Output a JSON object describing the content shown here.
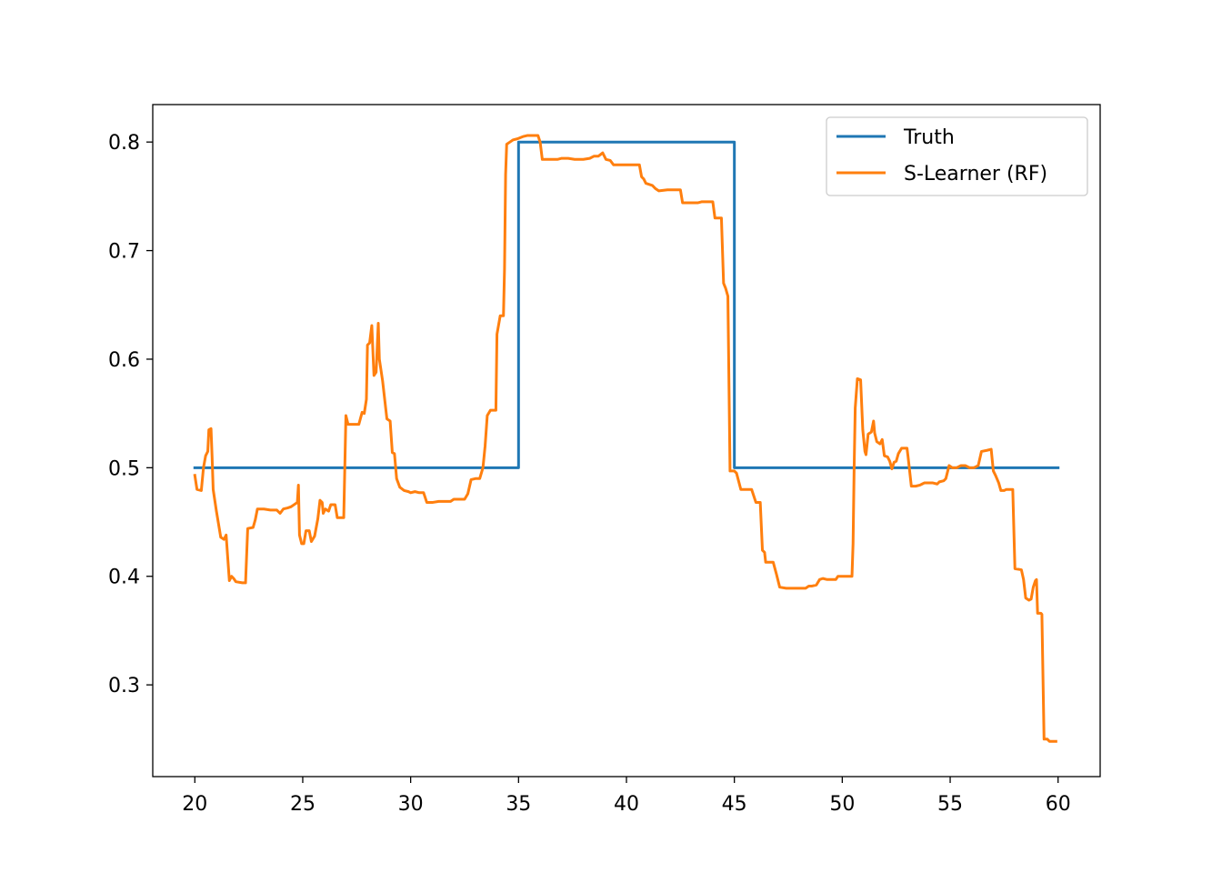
{
  "chart_data": {
    "type": "line",
    "title": "",
    "xlabel": "",
    "ylabel": "",
    "xlim": [
      18.05,
      61.95
    ],
    "ylim": [
      0.2155,
      0.8345
    ],
    "xticks": [
      20,
      25,
      30,
      35,
      40,
      45,
      50,
      55,
      60
    ],
    "xtick_labels": [
      "20",
      "25",
      "30",
      "35",
      "40",
      "45",
      "50",
      "55",
      "60"
    ],
    "yticks": [
      0.3,
      0.4,
      0.5,
      0.6,
      0.7,
      0.8
    ],
    "ytick_labels": [
      "0.3",
      "0.4",
      "0.5",
      "0.6",
      "0.7",
      "0.8"
    ],
    "grid": false,
    "legend_position": "top-right",
    "series": [
      {
        "name": "Truth",
        "color": "#1f77b4",
        "points": [
          [
            20,
            0.5
          ],
          [
            35,
            0.5
          ],
          [
            35,
            0.8
          ],
          [
            45,
            0.8
          ],
          [
            45,
            0.5
          ],
          [
            60,
            0.5
          ]
        ]
      },
      {
        "name": "S-Learner (RF)",
        "color": "#ff7f0e",
        "points": [
          [
            20.0,
            0.493
          ],
          [
            20.1,
            0.48
          ],
          [
            20.3,
            0.479
          ],
          [
            20.4,
            0.5
          ],
          [
            20.5,
            0.511
          ],
          [
            20.6,
            0.515
          ],
          [
            20.65,
            0.535
          ],
          [
            20.75,
            0.536
          ],
          [
            20.8,
            0.51
          ],
          [
            20.85,
            0.48
          ],
          [
            21.0,
            0.46
          ],
          [
            21.2,
            0.436
          ],
          [
            21.35,
            0.434
          ],
          [
            21.45,
            0.438
          ],
          [
            21.6,
            0.396
          ],
          [
            21.7,
            0.4
          ],
          [
            21.8,
            0.398
          ],
          [
            21.9,
            0.395
          ],
          [
            22.2,
            0.394
          ],
          [
            22.35,
            0.394
          ],
          [
            22.45,
            0.444
          ],
          [
            22.7,
            0.445
          ],
          [
            22.8,
            0.452
          ],
          [
            22.9,
            0.462
          ],
          [
            23.2,
            0.462
          ],
          [
            23.5,
            0.461
          ],
          [
            23.8,
            0.461
          ],
          [
            23.95,
            0.458
          ],
          [
            24.1,
            0.462
          ],
          [
            24.3,
            0.463
          ],
          [
            24.45,
            0.464
          ],
          [
            24.6,
            0.466
          ],
          [
            24.75,
            0.468
          ],
          [
            24.8,
            0.484
          ],
          [
            24.85,
            0.438
          ],
          [
            24.95,
            0.43
          ],
          [
            25.05,
            0.43
          ],
          [
            25.15,
            0.442
          ],
          [
            25.3,
            0.442
          ],
          [
            25.4,
            0.432
          ],
          [
            25.55,
            0.437
          ],
          [
            25.7,
            0.453
          ],
          [
            25.8,
            0.47
          ],
          [
            25.9,
            0.468
          ],
          [
            25.95,
            0.458
          ],
          [
            26.05,
            0.462
          ],
          [
            26.2,
            0.46
          ],
          [
            26.3,
            0.466
          ],
          [
            26.5,
            0.466
          ],
          [
            26.6,
            0.454
          ],
          [
            26.9,
            0.454
          ],
          [
            27.0,
            0.548
          ],
          [
            27.1,
            0.54
          ],
          [
            27.6,
            0.54
          ],
          [
            27.75,
            0.551
          ],
          [
            27.85,
            0.55
          ],
          [
            27.95,
            0.563
          ],
          [
            28.0,
            0.613
          ],
          [
            28.1,
            0.615
          ],
          [
            28.2,
            0.631
          ],
          [
            28.3,
            0.585
          ],
          [
            28.4,
            0.588
          ],
          [
            28.5,
            0.633
          ],
          [
            28.55,
            0.6
          ],
          [
            28.7,
            0.58
          ],
          [
            28.9,
            0.545
          ],
          [
            29.05,
            0.543
          ],
          [
            29.15,
            0.514
          ],
          [
            29.25,
            0.513
          ],
          [
            29.35,
            0.49
          ],
          [
            29.5,
            0.482
          ],
          [
            29.7,
            0.479
          ],
          [
            29.9,
            0.478
          ],
          [
            30.0,
            0.477
          ],
          [
            30.2,
            0.478
          ],
          [
            30.4,
            0.477
          ],
          [
            30.6,
            0.477
          ],
          [
            30.75,
            0.468
          ],
          [
            31.0,
            0.468
          ],
          [
            31.3,
            0.469
          ],
          [
            31.6,
            0.469
          ],
          [
            31.85,
            0.469
          ],
          [
            32.0,
            0.471
          ],
          [
            32.3,
            0.471
          ],
          [
            32.5,
            0.471
          ],
          [
            32.65,
            0.476
          ],
          [
            32.8,
            0.489
          ],
          [
            33.0,
            0.49
          ],
          [
            33.2,
            0.49
          ],
          [
            33.35,
            0.5
          ],
          [
            33.45,
            0.52
          ],
          [
            33.55,
            0.548
          ],
          [
            33.7,
            0.553
          ],
          [
            33.8,
            0.553
          ],
          [
            33.95,
            0.553
          ],
          [
            34.0,
            0.623
          ],
          [
            34.15,
            0.64
          ],
          [
            34.3,
            0.64
          ],
          [
            34.35,
            0.683
          ],
          [
            34.4,
            0.77
          ],
          [
            34.45,
            0.798
          ],
          [
            34.6,
            0.8
          ],
          [
            34.75,
            0.802
          ],
          [
            34.95,
            0.803
          ],
          [
            35.2,
            0.805
          ],
          [
            35.4,
            0.806
          ],
          [
            35.7,
            0.806
          ],
          [
            35.9,
            0.806
          ],
          [
            36.0,
            0.8
          ],
          [
            36.1,
            0.784
          ],
          [
            36.4,
            0.784
          ],
          [
            36.8,
            0.784
          ],
          [
            37.0,
            0.785
          ],
          [
            37.3,
            0.785
          ],
          [
            37.6,
            0.784
          ],
          [
            38.0,
            0.784
          ],
          [
            38.3,
            0.785
          ],
          [
            38.5,
            0.787
          ],
          [
            38.7,
            0.787
          ],
          [
            38.9,
            0.79
          ],
          [
            39.05,
            0.784
          ],
          [
            39.25,
            0.783
          ],
          [
            39.4,
            0.779
          ],
          [
            39.6,
            0.779
          ],
          [
            40.0,
            0.779
          ],
          [
            40.3,
            0.779
          ],
          [
            40.6,
            0.779
          ],
          [
            40.7,
            0.768
          ],
          [
            40.8,
            0.766
          ],
          [
            40.9,
            0.762
          ],
          [
            41.2,
            0.76
          ],
          [
            41.35,
            0.757
          ],
          [
            41.5,
            0.755
          ],
          [
            41.9,
            0.756
          ],
          [
            42.3,
            0.756
          ],
          [
            42.5,
            0.756
          ],
          [
            42.6,
            0.744
          ],
          [
            43.0,
            0.744
          ],
          [
            43.3,
            0.744
          ],
          [
            43.5,
            0.745
          ],
          [
            44.0,
            0.745
          ],
          [
            44.1,
            0.73
          ],
          [
            44.4,
            0.73
          ],
          [
            44.5,
            0.67
          ],
          [
            44.6,
            0.665
          ],
          [
            44.7,
            0.658
          ],
          [
            44.8,
            0.497
          ],
          [
            45.0,
            0.497
          ],
          [
            45.1,
            0.495
          ],
          [
            45.3,
            0.48
          ],
          [
            45.5,
            0.48
          ],
          [
            45.8,
            0.48
          ],
          [
            46.0,
            0.468
          ],
          [
            46.2,
            0.468
          ],
          [
            46.3,
            0.424
          ],
          [
            46.4,
            0.422
          ],
          [
            46.45,
            0.413
          ],
          [
            46.6,
            0.413
          ],
          [
            46.8,
            0.413
          ],
          [
            46.95,
            0.402
          ],
          [
            47.1,
            0.39
          ],
          [
            47.4,
            0.389
          ],
          [
            47.8,
            0.389
          ],
          [
            48.1,
            0.389
          ],
          [
            48.3,
            0.389
          ],
          [
            48.45,
            0.391
          ],
          [
            48.6,
            0.391
          ],
          [
            48.8,
            0.392
          ],
          [
            48.95,
            0.397
          ],
          [
            49.1,
            0.398
          ],
          [
            49.3,
            0.397
          ],
          [
            49.5,
            0.397
          ],
          [
            49.7,
            0.397
          ],
          [
            49.8,
            0.4
          ],
          [
            50.1,
            0.4
          ],
          [
            50.3,
            0.4
          ],
          [
            50.45,
            0.4
          ],
          [
            50.5,
            0.43
          ],
          [
            50.55,
            0.5
          ],
          [
            50.6,
            0.555
          ],
          [
            50.7,
            0.582
          ],
          [
            50.85,
            0.581
          ],
          [
            50.95,
            0.535
          ],
          [
            51.05,
            0.515
          ],
          [
            51.1,
            0.512
          ],
          [
            51.2,
            0.531
          ],
          [
            51.35,
            0.533
          ],
          [
            51.45,
            0.543
          ],
          [
            51.5,
            0.532
          ],
          [
            51.6,
            0.524
          ],
          [
            51.75,
            0.522
          ],
          [
            51.85,
            0.526
          ],
          [
            51.95,
            0.511
          ],
          [
            52.1,
            0.51
          ],
          [
            52.2,
            0.506
          ],
          [
            52.3,
            0.499
          ],
          [
            52.4,
            0.505
          ],
          [
            52.5,
            0.506
          ],
          [
            52.6,
            0.513
          ],
          [
            52.75,
            0.518
          ],
          [
            53.0,
            0.518
          ],
          [
            53.05,
            0.51
          ],
          [
            53.2,
            0.483
          ],
          [
            53.4,
            0.483
          ],
          [
            53.6,
            0.484
          ],
          [
            53.7,
            0.485
          ],
          [
            53.8,
            0.486
          ],
          [
            54.0,
            0.486
          ],
          [
            54.2,
            0.486
          ],
          [
            54.4,
            0.485
          ],
          [
            54.5,
            0.487
          ],
          [
            54.7,
            0.488
          ],
          [
            54.8,
            0.49
          ],
          [
            54.95,
            0.502
          ],
          [
            55.1,
            0.5
          ],
          [
            55.3,
            0.5
          ],
          [
            55.5,
            0.502
          ],
          [
            55.7,
            0.502
          ],
          [
            55.9,
            0.5
          ],
          [
            56.1,
            0.5
          ],
          [
            56.3,
            0.502
          ],
          [
            56.45,
            0.515
          ],
          [
            56.7,
            0.516
          ],
          [
            56.9,
            0.517
          ],
          [
            57.0,
            0.497
          ],
          [
            57.1,
            0.493
          ],
          [
            57.25,
            0.486
          ],
          [
            57.35,
            0.479
          ],
          [
            57.5,
            0.479
          ],
          [
            57.6,
            0.48
          ],
          [
            57.9,
            0.48
          ],
          [
            58.0,
            0.407
          ],
          [
            58.3,
            0.406
          ],
          [
            58.4,
            0.397
          ],
          [
            58.5,
            0.38
          ],
          [
            58.65,
            0.378
          ],
          [
            58.75,
            0.379
          ],
          [
            58.85,
            0.39
          ],
          [
            58.95,
            0.396
          ],
          [
            59.0,
            0.397
          ],
          [
            59.05,
            0.366
          ],
          [
            59.2,
            0.366
          ],
          [
            59.25,
            0.365
          ],
          [
            59.35,
            0.25
          ],
          [
            59.5,
            0.25
          ],
          [
            59.6,
            0.248
          ],
          [
            59.75,
            0.248
          ],
          [
            59.9,
            0.248
          ]
        ]
      }
    ]
  }
}
